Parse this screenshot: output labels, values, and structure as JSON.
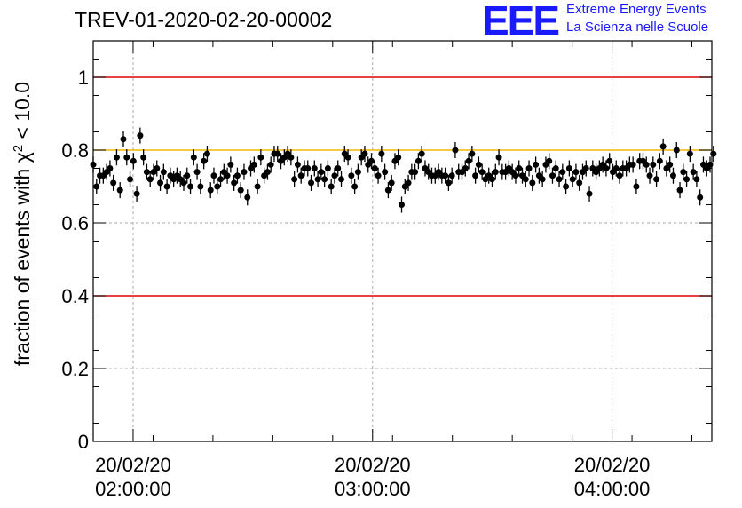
{
  "title": "TREV-01-2020-02-20-00002",
  "logo": {
    "mark": "EEE",
    "line1": "Extreme Energy Events",
    "line2": "La Scienza nelle Scuole"
  },
  "colors": {
    "limit_line": "#dd0000",
    "reference_line": "#f2b800",
    "marker": "#000000",
    "logo": "#1a1aff"
  },
  "chart_data": {
    "type": "scatter",
    "title": "TREV-01-2020-02-20-00002",
    "ylabel": "fraction of events with χ² < 10.0",
    "xlabel": "",
    "ylim": [
      0,
      1.1
    ],
    "xlim": [
      "2020-02-20 01:50",
      "2020-02-20 04:25"
    ],
    "x_ticks": [
      {
        "date": "20/02/20",
        "time": "02:00:00"
      },
      {
        "date": "20/02/20",
        "time": "03:00:00"
      },
      {
        "date": "20/02/20",
        "time": "04:00:00"
      }
    ],
    "y_ticks": [
      "0",
      "0.2",
      "0.4",
      "0.6",
      "0.8",
      "1"
    ],
    "grid": true,
    "error_bar": 0.022,
    "reference_lines": [
      {
        "y": 1.0,
        "color": "#dd0000"
      },
      {
        "y": 0.8,
        "color": "#f2b800"
      },
      {
        "y": 0.4,
        "color": "#dd0000"
      }
    ],
    "x_start": "01:50",
    "x_step_minutes": 0.84,
    "values": [
      0.76,
      0.7,
      0.73,
      0.73,
      0.74,
      0.75,
      0.71,
      0.78,
      0.69,
      0.83,
      0.78,
      0.72,
      0.77,
      0.68,
      0.84,
      0.78,
      0.74,
      0.72,
      0.74,
      0.75,
      0.71,
      0.74,
      0.7,
      0.73,
      0.72,
      0.73,
      0.72,
      0.71,
      0.73,
      0.7,
      0.78,
      0.74,
      0.7,
      0.77,
      0.79,
      0.69,
      0.73,
      0.7,
      0.72,
      0.74,
      0.73,
      0.76,
      0.71,
      0.73,
      0.69,
      0.74,
      0.67,
      0.75,
      0.76,
      0.7,
      0.78,
      0.73,
      0.74,
      0.76,
      0.79,
      0.79,
      0.77,
      0.78,
      0.79,
      0.78,
      0.72,
      0.76,
      0.73,
      0.75,
      0.75,
      0.71,
      0.75,
      0.72,
      0.74,
      0.72,
      0.75,
      0.7,
      0.73,
      0.75,
      0.72,
      0.79,
      0.78,
      0.73,
      0.7,
      0.74,
      0.78,
      0.79,
      0.76,
      0.77,
      0.75,
      0.73,
      0.79,
      0.74,
      0.69,
      0.71,
      0.77,
      0.78,
      0.65,
      0.7,
      0.71,
      0.74,
      0.74,
      0.77,
      0.79,
      0.75,
      0.74,
      0.73,
      0.73,
      0.74,
      0.73,
      0.73,
      0.71,
      0.73,
      0.8,
      0.74,
      0.74,
      0.75,
      0.77,
      0.79,
      0.73,
      0.76,
      0.74,
      0.72,
      0.73,
      0.72,
      0.74,
      0.78,
      0.74,
      0.74,
      0.75,
      0.74,
      0.73,
      0.75,
      0.73,
      0.72,
      0.75,
      0.71,
      0.76,
      0.73,
      0.72,
      0.76,
      0.77,
      0.73,
      0.75,
      0.72,
      0.74,
      0.7,
      0.75,
      0.72,
      0.74,
      0.71,
      0.74,
      0.75,
      0.68,
      0.75,
      0.74,
      0.75,
      0.76,
      0.75,
      0.77,
      0.74,
      0.75,
      0.73,
      0.75,
      0.75,
      0.76,
      0.76,
      0.7,
      0.77,
      0.77,
      0.76,
      0.73,
      0.76,
      0.72,
      0.77,
      0.81,
      0.75,
      0.76,
      0.73,
      0.8,
      0.69,
      0.74,
      0.72,
      0.79,
      0.74,
      0.72,
      0.67,
      0.76,
      0.75,
      0.76,
      0.79
    ]
  }
}
